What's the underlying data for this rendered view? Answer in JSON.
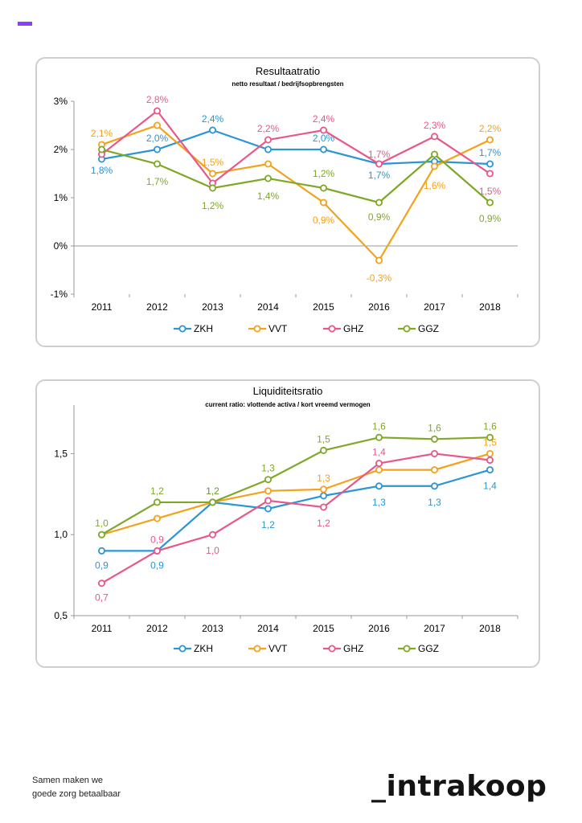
{
  "colors": {
    "accent": "#8a3ffc",
    "ZKH": "#2b95d6",
    "VVT": "#f4a11c",
    "GHZ": "#e8578a",
    "GGZ": "#7fa826"
  },
  "chart_data": [
    {
      "type": "line",
      "title": "Resultaatratio",
      "subtitle": "netto resultaat / bedrijfsopbrengsten",
      "categories": [
        "2011",
        "2012",
        "2013",
        "2014",
        "2015",
        "2016",
        "2017",
        "2018"
      ],
      "ylim": [
        -1,
        3
      ],
      "yticks": [
        -1,
        0,
        1,
        2,
        3
      ],
      "ytick_labels": [
        "-1%",
        "0%",
        "1%",
        "2%",
        "3%"
      ],
      "grid": false,
      "legend": "bottom",
      "series": [
        {
          "name": "ZKH",
          "values": [
            1.8,
            2.0,
            2.4,
            2.0,
            2.0,
            1.7,
            1.75,
            1.7
          ],
          "labels": [
            "1,8%",
            "2,0%",
            "2,4%",
            "",
            "2,0%",
            "1,7%",
            "",
            "1,7%"
          ]
        },
        {
          "name": "VVT",
          "values": [
            2.1,
            2.5,
            1.5,
            1.7,
            0.9,
            -0.3,
            1.65,
            2.2
          ],
          "labels": [
            "2,1%",
            "",
            "1,5%",
            "",
            "0,9%",
            "-0,3%",
            "1,6%",
            "2,2%"
          ]
        },
        {
          "name": "GHZ",
          "values": [
            1.9,
            2.8,
            1.3,
            2.2,
            2.4,
            1.7,
            2.27,
            1.5
          ],
          "labels": [
            "",
            "2,8%",
            "",
            "2,2%",
            "2,4%",
            "1,7%",
            "2,3%",
            "1,5%"
          ]
        },
        {
          "name": "GGZ",
          "values": [
            2.0,
            1.7,
            1.2,
            1.4,
            1.2,
            0.9,
            1.9,
            0.9
          ],
          "labels": [
            "",
            "1,7%",
            "1,2%",
            "1,4%",
            "1,2%",
            "0,9%",
            "",
            "0,9%"
          ]
        }
      ]
    },
    {
      "type": "line",
      "title": "Liquiditeitsratio",
      "subtitle": "current ratio: vlottende activa / kort vreemd vermogen",
      "categories": [
        "2011",
        "2012",
        "2013",
        "2014",
        "2015",
        "2016",
        "2017",
        "2018"
      ],
      "ylim": [
        0.5,
        1.8
      ],
      "yticks": [
        0.5,
        1.0,
        1.5
      ],
      "ytick_labels": [
        "0,5",
        "1,0",
        "1,5"
      ],
      "grid": false,
      "legend": "bottom",
      "series": [
        {
          "name": "ZKH",
          "values": [
            0.9,
            0.9,
            1.2,
            1.16,
            1.24,
            1.3,
            1.3,
            1.4
          ],
          "labels": [
            "0,9",
            "0,9",
            "1,2",
            "1,2",
            "",
            "1,3",
            "1,3",
            "1,4"
          ]
        },
        {
          "name": "VVT",
          "values": [
            1.0,
            1.1,
            1.2,
            1.27,
            1.28,
            1.4,
            1.4,
            1.5
          ],
          "labels": [
            "",
            "",
            "",
            "",
            "1,3",
            "",
            "",
            "1,5"
          ]
        },
        {
          "name": "GHZ",
          "values": [
            0.7,
            0.9,
            1.0,
            1.21,
            1.17,
            1.44,
            1.5,
            1.46
          ],
          "labels": [
            "0,7",
            "0,9",
            "1,0",
            "",
            "1,2",
            "1,4",
            "",
            ""
          ]
        },
        {
          "name": "GGZ",
          "values": [
            1.0,
            1.2,
            1.2,
            1.34,
            1.52,
            1.6,
            1.59,
            1.6
          ],
          "labels": [
            "1,0",
            "1,2",
            "1,2",
            "1,3",
            "1,5",
            "1,6",
            "1,6",
            "1,6"
          ]
        }
      ]
    }
  ],
  "footer": {
    "tagline_line1": "Samen maken we",
    "tagline_line2": "goede zorg betaalbaar",
    "logo": "_intrakoop"
  }
}
